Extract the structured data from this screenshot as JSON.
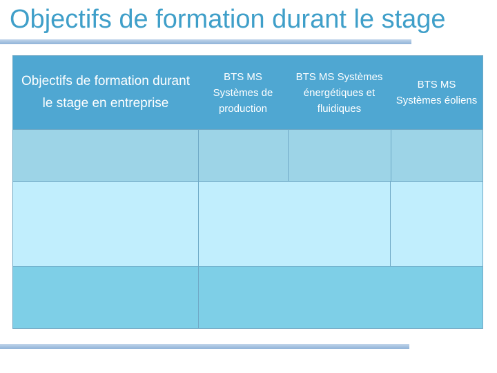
{
  "title": "Objectifs de formation durant le stage",
  "table": {
    "headers": [
      "Objectifs de formation durant le stage en entreprise",
      "BTS MS Systèmes de production",
      "BTS MS Systèmes énergétiques et fluidiques",
      "BTS MS Systèmes éoliens"
    ]
  },
  "colors": {
    "title": "#3f9fc9",
    "header_bg": "#4fa7d2",
    "row1_bg": "#9dd4e7",
    "row2_bg": "#c1eefd",
    "row3_bg": "#7ecfe7",
    "rule": "#a9c4e2"
  }
}
